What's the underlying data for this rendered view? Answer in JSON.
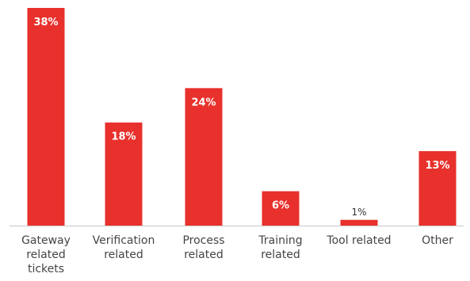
{
  "chart_data": {
    "type": "bar",
    "categories": [
      [
        "Gateway",
        "related",
        "tickets"
      ],
      [
        "Verification",
        "related"
      ],
      [
        "Process",
        "related"
      ],
      [
        "Training",
        "related"
      ],
      [
        "Tool related"
      ],
      [
        "Other"
      ]
    ],
    "values": [
      38,
      18,
      24,
      6,
      1,
      13
    ],
    "data_labels": [
      "38%",
      "18%",
      "24%",
      "6%",
      "1%",
      "13%"
    ],
    "ylim": [
      0,
      38
    ],
    "title": "",
    "xlabel": "",
    "ylabel": "",
    "grid": false,
    "colors": {
      "bar": "#e8312c",
      "inside_label": "#ffffff",
      "outside_label": "#333333",
      "category_label": "#444444",
      "axis": "#c8c8c8"
    }
  }
}
